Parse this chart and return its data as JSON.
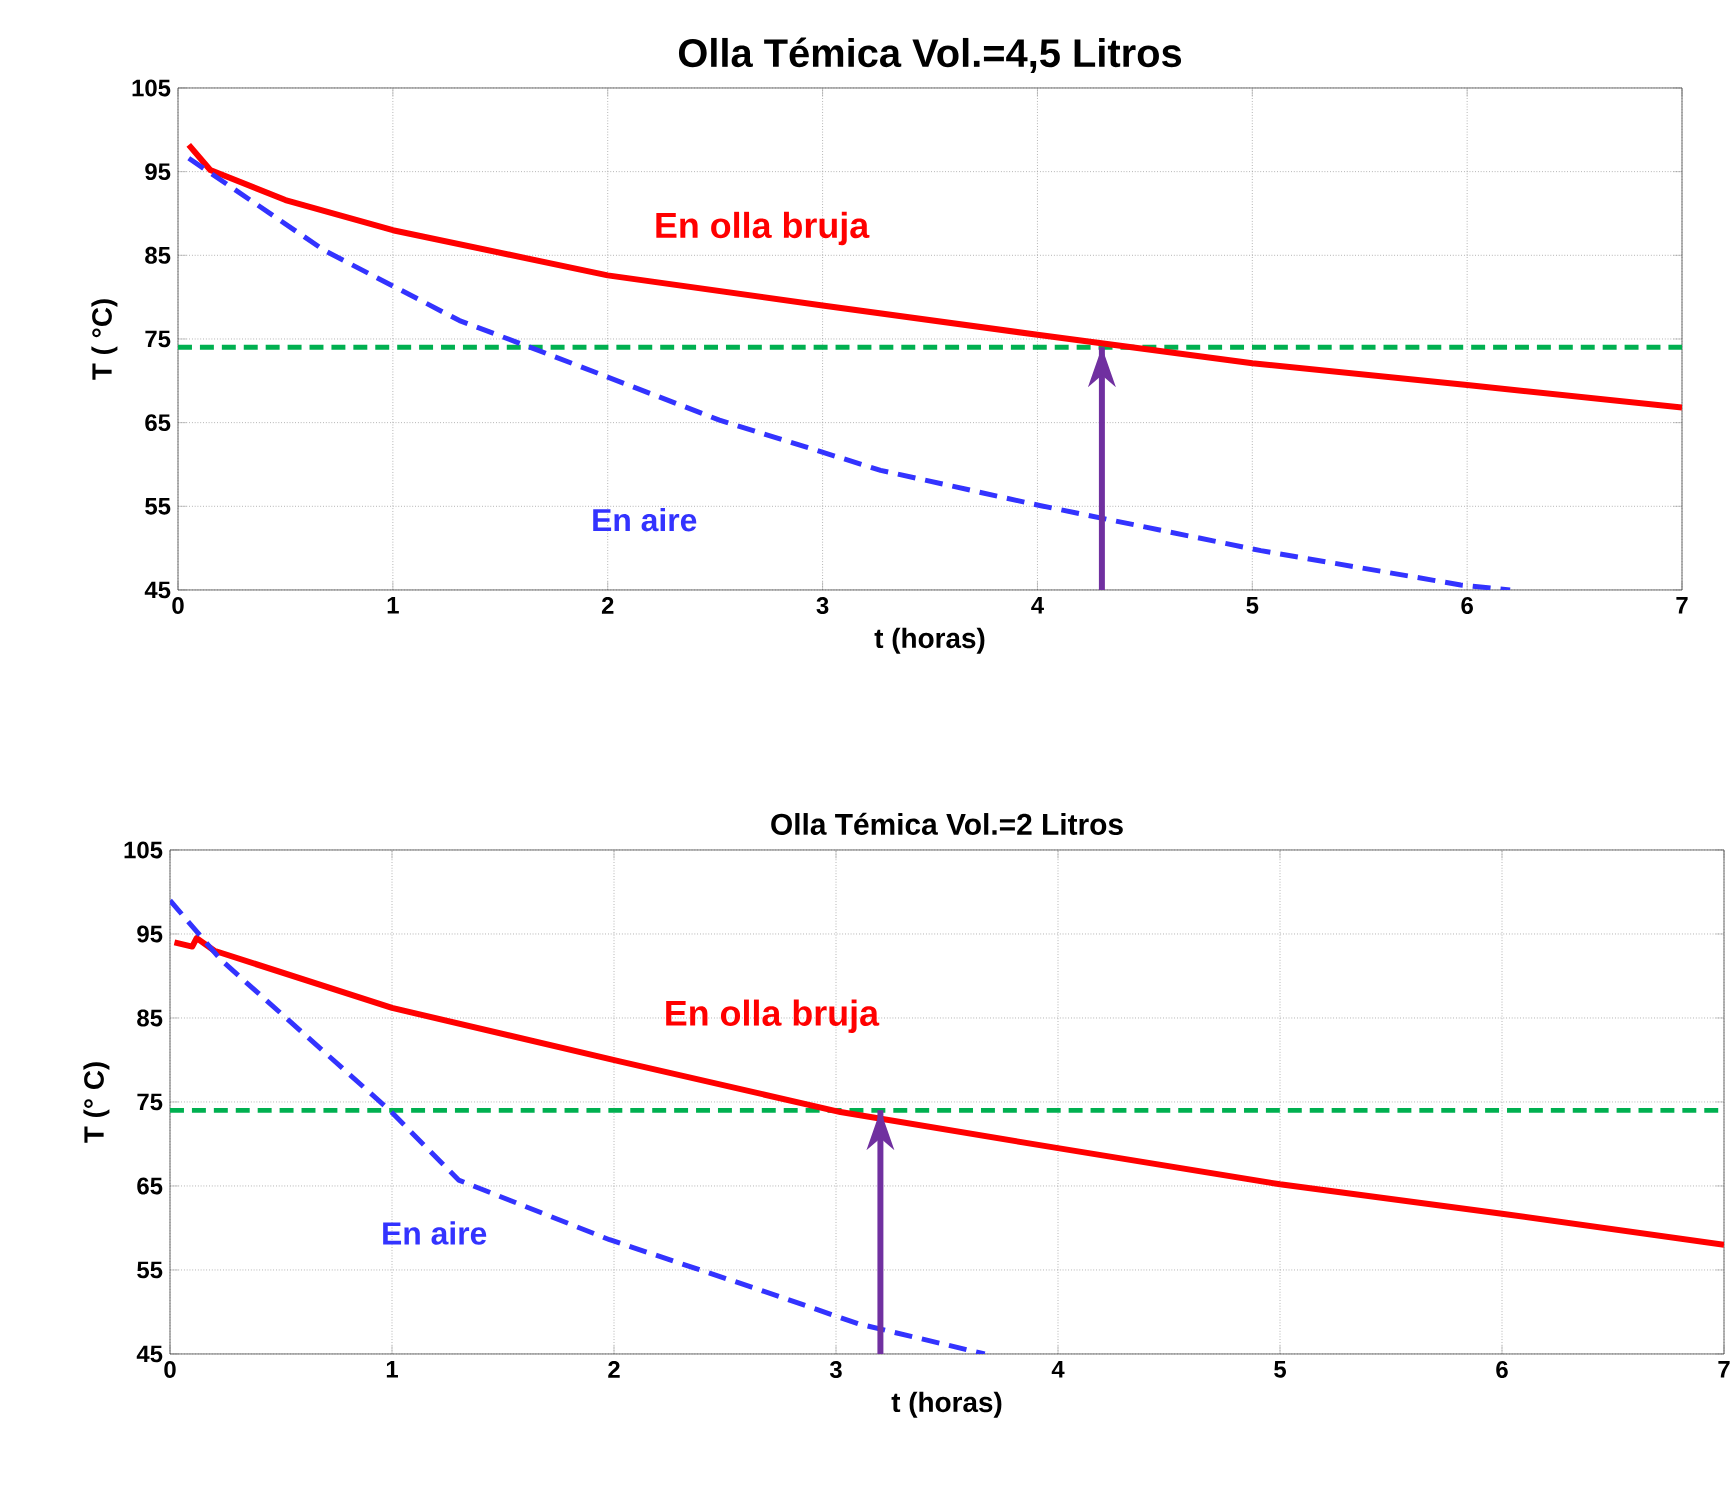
{
  "chart_data": [
    {
      "type": "line",
      "title": "Olla Témica Vol.=4,5 Litros",
      "xlabel": "t (horas)",
      "ylabel": "T ( °C)",
      "xlim": [
        0,
        7
      ],
      "ylim": [
        45,
        105
      ],
      "xticks": [
        0,
        1,
        2,
        3,
        4,
        5,
        6,
        7
      ],
      "yticks": [
        45,
        55,
        65,
        75,
        85,
        95,
        105
      ],
      "grid": true,
      "series": [
        {
          "color": "#ff0000",
          "line_style": "solid",
          "x": [
            0.05,
            0.15,
            0.5,
            1,
            2,
            3,
            4,
            5,
            6,
            7
          ],
          "values": [
            98.2,
            95.2,
            91.6,
            88,
            82.6,
            79,
            75.5,
            72.1,
            69.5,
            66.8
          ]
        },
        {
          "color": "#3333ff",
          "line_style": "dashed",
          "x": [
            0.05,
            0.68,
            1.31,
            1.64,
            2.52,
            3.27,
            4.01,
            5.04,
            5.97,
            6.2
          ],
          "values": [
            96.6,
            85.6,
            77.2,
            74,
            65.3,
            59.3,
            55.1,
            49.7,
            45.6,
            45
          ]
        }
      ],
      "ref_lines": [
        {
          "axis": "y",
          "value": 74,
          "color": "#00b050",
          "line_style": "dashed"
        },
        {
          "axis": "x",
          "value": 4.3,
          "color": "#7030a0"
        }
      ],
      "annotations": [
        "En olla bruja",
        "En aire"
      ]
    },
    {
      "type": "line",
      "title": "Olla Témica Vol.=2 Litros",
      "xlabel": "t (horas)",
      "ylabel": "T (° C)",
      "xlim": [
        0,
        7
      ],
      "ylim": [
        45,
        105
      ],
      "xticks": [
        0,
        1,
        2,
        3,
        4,
        5,
        6,
        7
      ],
      "yticks": [
        45,
        55,
        65,
        75,
        85,
        95,
        105
      ],
      "grid": true,
      "series": [
        {
          "color": "#ff0000",
          "line_style": "solid",
          "x": [
            0.02,
            0.1,
            0.12,
            0.2,
            1,
            2.03,
            3.02,
            4,
            5,
            6,
            7
          ],
          "values": [
            94,
            93.5,
            94.5,
            93,
            86.2,
            79.8,
            73.8,
            69.5,
            65.2,
            61.7,
            58
          ]
        },
        {
          "color": "#3333ff",
          "line_style": "dashed",
          "x": [
            0,
            0.23,
            0.99,
            1.3,
            1.98,
            2.66,
            3.1,
            3.67
          ],
          "values": [
            99,
            91.9,
            74,
            65.7,
            58.6,
            52.6,
            48.6,
            45
          ]
        }
      ],
      "ref_lines": [
        {
          "axis": "y",
          "value": 74,
          "color": "#00b050",
          "line_style": "dashed"
        },
        {
          "axis": "x",
          "value": 3.2,
          "color": "#7030a0"
        }
      ],
      "annotations": [
        "En olla bruja",
        "En aire"
      ]
    }
  ]
}
